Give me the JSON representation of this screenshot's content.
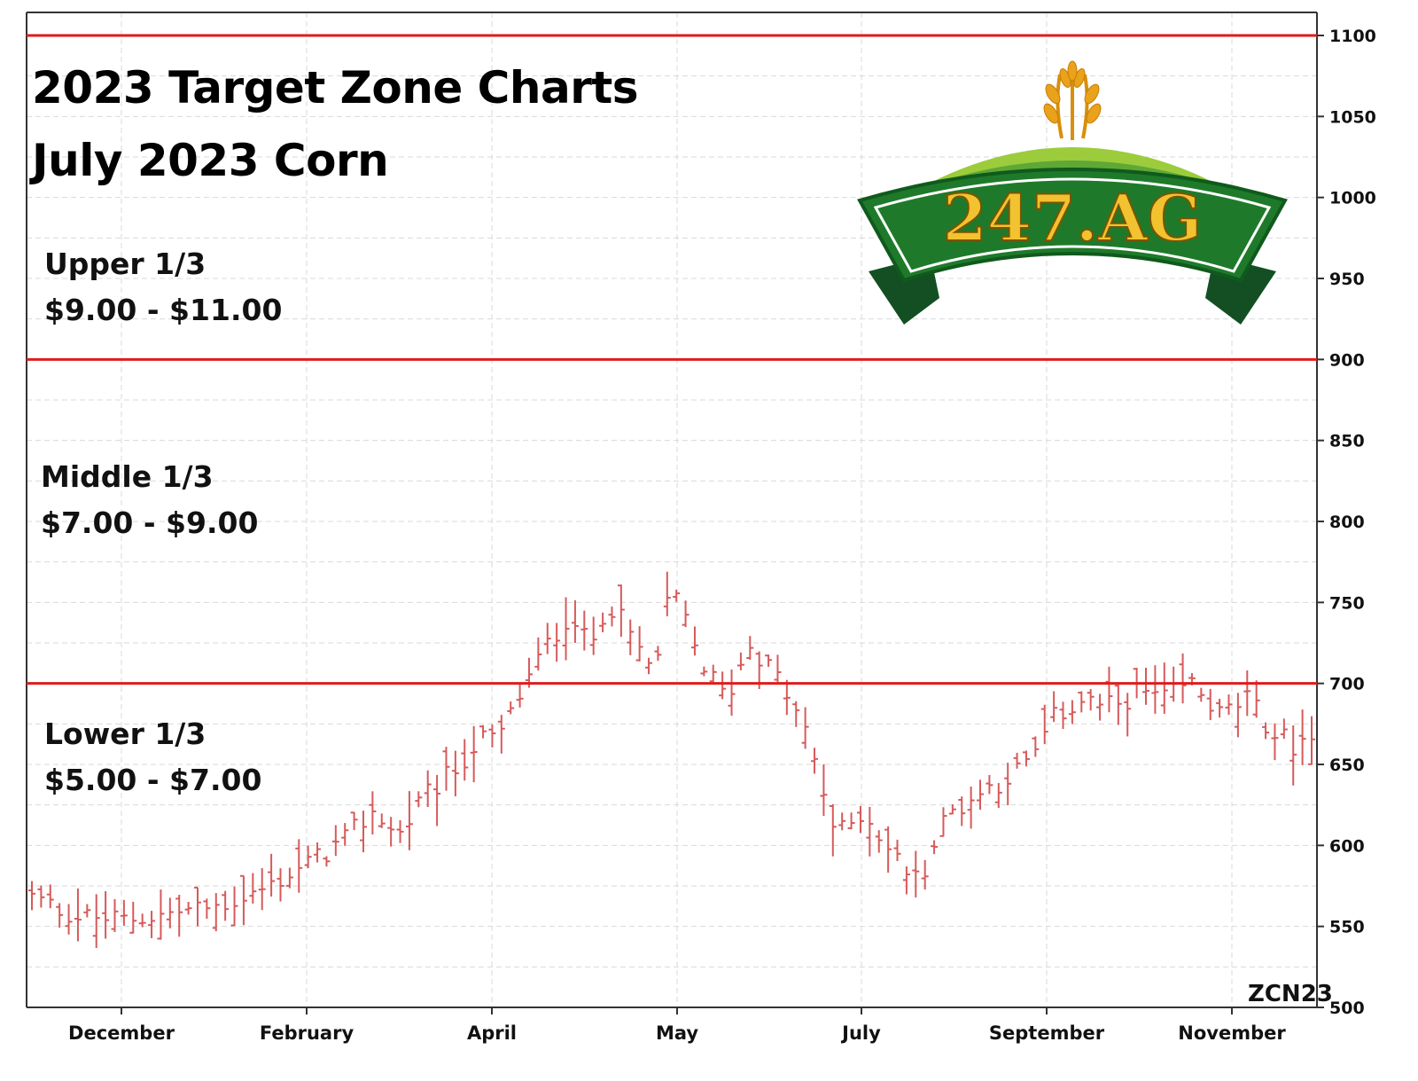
{
  "title": {
    "line1": "2023 Target Zone Charts",
    "line2": "July 2023 Corn"
  },
  "zones": [
    {
      "name": "Upper 1/3",
      "range": "$9.00 - $11.00"
    },
    {
      "name": "Middle 1/3",
      "range": "$7.00 - $9.00"
    },
    {
      "name": "Lower 1/3",
      "range": "$5.00 - $7.00"
    }
  ],
  "symbol": "ZCN23",
  "logo": {
    "text": "247.AG",
    "green": "#1e7a2a",
    "gold": "#f2b705"
  },
  "colors": {
    "bars": "#d65a5a",
    "zone_lines": "#e21b1b",
    "grid": "#d9d9d9"
  },
  "chart_data": {
    "type": "ohlc",
    "yaxis": {
      "min": 500,
      "max": 1100,
      "ticks": [
        500,
        550,
        600,
        650,
        700,
        750,
        800,
        850,
        900,
        950,
        1000,
        1050,
        1100
      ]
    },
    "xaxis": {
      "start_month": "2022-11",
      "end_month": "2023-07",
      "tick_labels": [
        "December",
        "February",
        "April",
        "May",
        "July",
        "September",
        "November"
      ],
      "tick_month_index": [
        1,
        3,
        5,
        6,
        8,
        10,
        12
      ]
    },
    "zone_lines": [
      700,
      900,
      1100
    ],
    "grid": true,
    "close_path": [
      [
        0.0,
        568
      ],
      [
        0.5,
        556
      ],
      [
        1.0,
        554
      ],
      [
        1.5,
        558
      ],
      [
        2.0,
        562
      ],
      [
        2.5,
        572
      ],
      [
        3.0,
        588
      ],
      [
        3.4,
        602
      ],
      [
        3.75,
        622
      ],
      [
        4.0,
        605
      ],
      [
        4.3,
        630
      ],
      [
        4.6,
        645
      ],
      [
        4.9,
        665
      ],
      [
        5.1,
        665
      ],
      [
        5.4,
        700
      ],
      [
        5.6,
        720
      ],
      [
        5.9,
        745
      ],
      [
        6.1,
        720
      ],
      [
        6.3,
        752
      ],
      [
        6.6,
        725
      ],
      [
        6.8,
        705
      ],
      [
        7.0,
        760
      ],
      [
        7.3,
        715
      ],
      [
        7.6,
        690
      ],
      [
        7.85,
        725
      ],
      [
        8.2,
        700
      ],
      [
        8.5,
        665
      ],
      [
        8.8,
        605
      ],
      [
        9.1,
        622
      ],
      [
        9.4,
        595
      ],
      [
        9.7,
        578
      ],
      [
        10.0,
        618
      ],
      [
        10.3,
        630
      ],
      [
        10.6,
        640
      ],
      [
        10.9,
        650
      ],
      [
        11.2,
        680
      ],
      [
        11.5,
        690
      ],
      [
        11.8,
        685
      ],
      [
        12.1,
        695
      ],
      [
        12.4,
        690
      ],
      [
        12.7,
        700
      ],
      [
        13.0,
        680
      ],
      [
        13.3,
        690
      ],
      [
        13.6,
        668
      ],
      [
        13.9,
        660
      ],
      [
        14.0,
        660
      ]
    ],
    "bar_count": 140
  }
}
